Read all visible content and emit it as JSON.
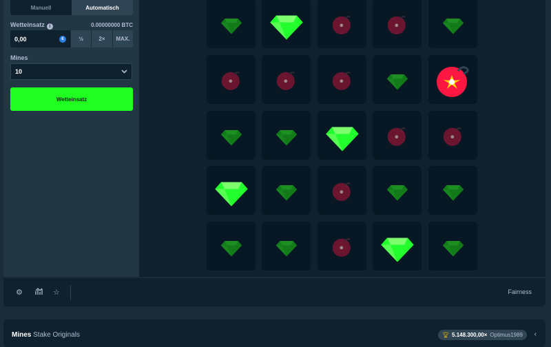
{
  "sidebar": {
    "tabs": [
      {
        "label": "Manuell",
        "active": false
      },
      {
        "label": "Automatisch",
        "active": true
      }
    ],
    "bet_label": "Wetteinsatz",
    "bet_balance": "0.00000000 BTC",
    "bet_value": "0,00",
    "half": "½",
    "double": "2×",
    "max": "MAX.",
    "mines_label": "Mines",
    "mines_value": "10",
    "play_button": "Wetteinsatz"
  },
  "grid": [
    [
      "gem-dim",
      "gem",
      "mine-dim",
      "mine-dim",
      "gem-dim"
    ],
    [
      "mine-dim",
      "mine-dim",
      "mine-dim",
      "gem-dim",
      "mine-hit"
    ],
    [
      "gem-dim",
      "gem-dim",
      "gem",
      "mine-dim",
      "mine-dim"
    ],
    [
      "gem",
      "gem-dim",
      "mine-dim",
      "gem-dim",
      "gem-dim"
    ],
    [
      "gem-dim",
      "gem-dim",
      "mine-dim",
      "gem",
      "gem-dim"
    ]
  ],
  "toolbar": {
    "fairness": "Fairness",
    "icons": [
      "gear-icon",
      "stats-icon",
      "star-icon"
    ]
  },
  "footer": {
    "game": "Mines",
    "provider": "Stake Originals",
    "record_multiplier": "5.148.300,00×",
    "record_user": "Optimus1989"
  },
  "colors": {
    "accent": "#1fff20",
    "mine": "#ff1744"
  }
}
